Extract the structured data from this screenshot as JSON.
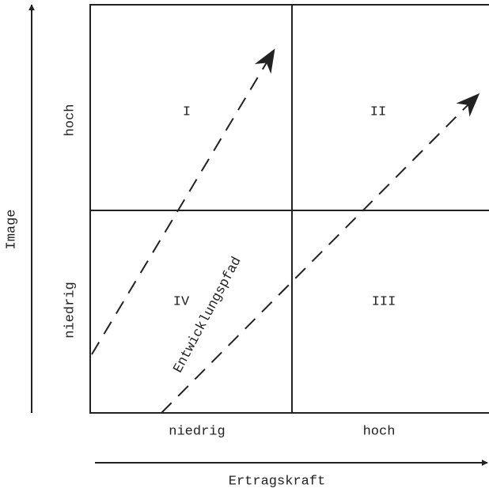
{
  "axes": {
    "y_label": "Image",
    "x_label": "Ertragskraft",
    "y_high": "hoch",
    "y_low": "niedrig",
    "x_low": "niedrig",
    "x_high": "hoch"
  },
  "quadrants": [
    "I",
    "II",
    "III",
    "IV"
  ],
  "path_label": "Entwicklungspfad"
}
